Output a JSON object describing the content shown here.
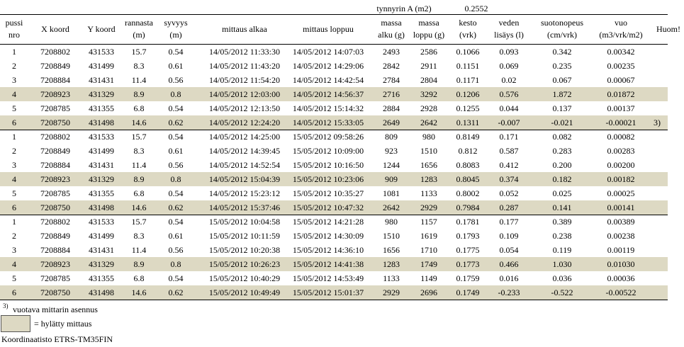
{
  "barrel": {
    "label": "tynnyrin A (m2)",
    "value": "0.2552"
  },
  "table": {
    "headers": [
      [
        "pussi",
        "nro"
      ],
      [
        "X koord"
      ],
      [
        "Y koord"
      ],
      [
        "rannasta",
        "(m)"
      ],
      [
        "syvyys",
        "(m)"
      ],
      [
        "mittaus alkaa"
      ],
      [
        "mittaus loppuu"
      ],
      [
        "massa",
        "alku (g)"
      ],
      [
        "massa",
        "loppu (g)"
      ],
      [
        "kesto",
        "(vrk)"
      ],
      [
        "veden",
        "lisäys (l)"
      ],
      [
        "suotonopeus",
        "(cm/vrk)"
      ],
      [
        "vuo",
        "(m3/vrk/m2)"
      ],
      [
        "Huom!"
      ]
    ],
    "groups": [
      {
        "rows": [
          {
            "cells": [
              "1",
              "7208802",
              "431533",
              "15.7",
              "0.54",
              "14/05/2012 11:33:30",
              "14/05/2012 14:07:03",
              "2493",
              "2586",
              "0.1066",
              "0.093",
              "0.342",
              "0.00342"
            ]
          },
          {
            "cells": [
              "2",
              "7208849",
              "431499",
              "8.3",
              "0.61",
              "14/05/2012 11:43:20",
              "14/05/2012 14:29:06",
              "2842",
              "2911",
              "0.1151",
              "0.069",
              "0.235",
              "0.00235"
            ]
          },
          {
            "cells": [
              "3",
              "7208884",
              "431431",
              "11.4",
              "0.56",
              "14/05/2012 11:54:20",
              "14/05/2012 14:42:54",
              "2784",
              "2804",
              "0.1171",
              "0.02",
              "0.067",
              "0.00067"
            ]
          },
          {
            "cells": [
              "4",
              "7208923",
              "431329",
              "8.9",
              "0.8",
              "14/05/2012 12:03:00",
              "14/05/2012 14:56:37",
              "2716",
              "3292",
              "0.1206",
              "0.576",
              "1.872",
              "0.01872"
            ],
            "rejected": true
          },
          {
            "cells": [
              "5",
              "7208785",
              "431355",
              "6.8",
              "0.54",
              "14/05/2012 12:13:50",
              "14/05/2012 15:14:32",
              "2884",
              "2928",
              "0.1255",
              "0.044",
              "0.137",
              "0.00137"
            ]
          },
          {
            "cells": [
              "6",
              "7208750",
              "431498",
              "14.6",
              "0.62",
              "14/05/2012 12:24:20",
              "14/05/2012 15:33:05",
              "2649",
              "2642",
              "0.1311",
              "-0.007",
              "-0.021",
              "-0.00021"
            ],
            "rejected": true,
            "note": "3)"
          }
        ]
      },
      {
        "rows": [
          {
            "cells": [
              "1",
              "7208802",
              "431533",
              "15.7",
              "0.54",
              "14/05/2012 14:25:00",
              "15/05/2012 09:58:26",
              "809",
              "980",
              "0.8149",
              "0.171",
              "0.082",
              "0.00082"
            ]
          },
          {
            "cells": [
              "2",
              "7208849",
              "431499",
              "8.3",
              "0.61",
              "14/05/2012 14:39:45",
              "15/05/2012 10:09:00",
              "923",
              "1510",
              "0.812",
              "0.587",
              "0.283",
              "0.00283"
            ]
          },
          {
            "cells": [
              "3",
              "7208884",
              "431431",
              "11.4",
              "0.56",
              "14/05/2012 14:52:54",
              "15/05/2012 10:16:50",
              "1244",
              "1656",
              "0.8083",
              "0.412",
              "0.200",
              "0.00200"
            ]
          },
          {
            "cells": [
              "4",
              "7208923",
              "431329",
              "8.9",
              "0.8",
              "14/05/2012 15:04:39",
              "15/05/2012 10:23:06",
              "909",
              "1283",
              "0.8045",
              "0.374",
              "0.182",
              "0.00182"
            ],
            "rejected": true
          },
          {
            "cells": [
              "5",
              "7208785",
              "431355",
              "6.8",
              "0.54",
              "14/05/2012 15:23:12",
              "15/05/2012 10:35:27",
              "1081",
              "1133",
              "0.8002",
              "0.052",
              "0.025",
              "0.00025"
            ]
          },
          {
            "cells": [
              "6",
              "7208750",
              "431498",
              "14.6",
              "0.62",
              "14/05/2012 15:37:46",
              "15/05/2012 10:47:32",
              "2642",
              "2929",
              "0.7984",
              "0.287",
              "0.141",
              "0.00141"
            ],
            "rejected": true
          }
        ]
      },
      {
        "rows": [
          {
            "cells": [
              "1",
              "7208802",
              "431533",
              "15.7",
              "0.54",
              "15/05/2012 10:04:58",
              "15/05/2012 14:21:28",
              "980",
              "1157",
              "0.1781",
              "0.177",
              "0.389",
              "0.00389"
            ]
          },
          {
            "cells": [
              "2",
              "7208849",
              "431499",
              "8.3",
              "0.61",
              "15/05/2012 10:11:59",
              "15/05/2012 14:30:09",
              "1510",
              "1619",
              "0.1793",
              "0.109",
              "0.238",
              "0.00238"
            ]
          },
          {
            "cells": [
              "3",
              "7208884",
              "431431",
              "11.4",
              "0.56",
              "15/05/2012 10:20:38",
              "15/05/2012 14:36:10",
              "1656",
              "1710",
              "0.1775",
              "0.054",
              "0.119",
              "0.00119"
            ]
          },
          {
            "cells": [
              "4",
              "7208923",
              "431329",
              "8.9",
              "0.8",
              "15/05/2012 10:26:23",
              "15/05/2012 14:41:38",
              "1283",
              "1749",
              "0.1773",
              "0.466",
              "1.030",
              "0.01030"
            ],
            "rejected": true
          },
          {
            "cells": [
              "5",
              "7208785",
              "431355",
              "6.8",
              "0.54",
              "15/05/2012 10:40:29",
              "15/05/2012 14:53:49",
              "1133",
              "1149",
              "0.1759",
              "0.016",
              "0.036",
              "0.00036"
            ]
          },
          {
            "cells": [
              "6",
              "7208750",
              "431498",
              "14.6",
              "0.62",
              "15/05/2012 10:49:49",
              "15/05/2012 15:01:37",
              "2929",
              "2696",
              "0.1749",
              "-0.233",
              "-0.522",
              "-0.00522"
            ],
            "rejected": true
          }
        ]
      }
    ]
  },
  "footer": {
    "note_marker": "3)",
    "note_text": "vuotava mittarin asennus",
    "legend_text": "= hylätty mittaus",
    "coordinates": "Koordinaatisto ETRS-TM35FIN"
  }
}
